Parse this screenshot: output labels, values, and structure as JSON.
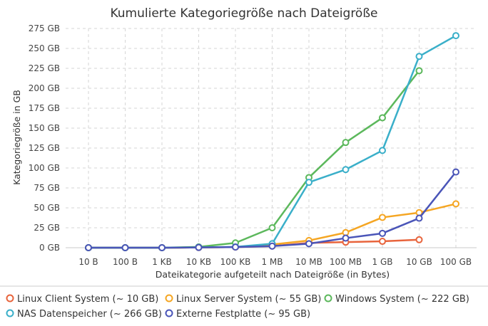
{
  "chart_data": {
    "type": "line",
    "title": "Kumulierte Kategoriegröße nach Dateigröße",
    "xlabel": "Dateikategorie aufgeteilt nach Dateigröße (in Bytes)",
    "ylabel": "Kategoriegröße in GB",
    "categories": [
      "10 B",
      "100 B",
      "1 KB",
      "10 KB",
      "100 KB",
      "1 MB",
      "10 MB",
      "100 MB",
      "1 GB",
      "10 GB",
      "100 GB"
    ],
    "y_ticks": [
      "0 GB",
      "25 GB",
      "50 GB",
      "75 GB",
      "100 GB",
      "125 GB",
      "150 GB",
      "175 GB",
      "200 GB",
      "225 GB",
      "250 GB",
      "275 GB"
    ],
    "ylim": [
      0,
      275
    ],
    "grid": true,
    "legend_position": "bottom",
    "series": [
      {
        "name": "Linux Client System (~ 10 GB)",
        "color": "#e8643c",
        "values": [
          0,
          0,
          0,
          0.3,
          0.8,
          2,
          6,
          7,
          8,
          10,
          null
        ]
      },
      {
        "name": "Linux Server System (~ 55 GB)",
        "color": "#f5a623",
        "values": [
          0,
          0,
          0,
          0.3,
          0.8,
          4,
          9,
          19,
          38,
          44,
          55
        ]
      },
      {
        "name": "Windows System (~ 222 GB)",
        "color": "#5cb85c",
        "values": [
          0,
          0,
          0,
          1,
          6,
          25,
          88,
          132,
          163,
          222,
          null
        ]
      },
      {
        "name": "NAS Datenspeicher (~ 266 GB)",
        "color": "#3aafc9",
        "values": [
          0,
          0,
          0,
          0.5,
          1,
          5,
          82,
          98,
          122,
          240,
          266
        ]
      },
      {
        "name": "Externe Festplatte (~ 95 GB)",
        "color": "#4a55b8",
        "values": [
          0,
          0,
          0,
          0.3,
          0.8,
          2,
          5,
          12,
          18,
          37,
          95
        ]
      }
    ]
  }
}
